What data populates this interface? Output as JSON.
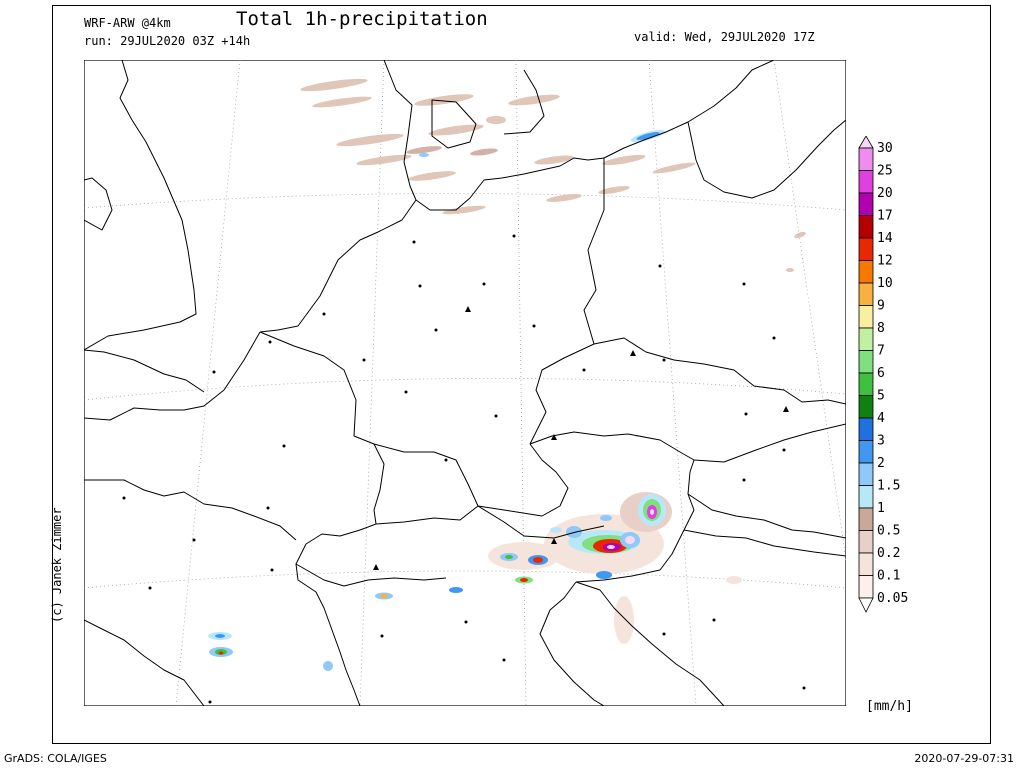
{
  "header": {
    "model": "WRF-ARW @4km",
    "run": "run: 29JUL2020 03Z +14h",
    "title": "Total 1h-precipitation",
    "valid": "valid: Wed, 29JUL2020 17Z"
  },
  "credit": "(c) Janek Zimmer",
  "footer": {
    "left": "GrADS: COLA/IGES",
    "right": "2020-07-29-07:31"
  },
  "colorbar": {
    "unit": "[mm/h]",
    "levels": [
      "30",
      "25",
      "20",
      "17",
      "14",
      "12",
      "10",
      "9",
      "8",
      "7",
      "6",
      "5",
      "4",
      "3",
      "2",
      "1.5",
      "1",
      "0.5",
      "0.2",
      "0.1",
      "0.05"
    ],
    "colors": [
      "#f6d8f6",
      "#f08cf0",
      "#e040e0",
      "#b000b0",
      "#b40000",
      "#e82800",
      "#f87800",
      "#f8b040",
      "#f8f0a0",
      "#c0f0a0",
      "#80e080",
      "#40c040",
      "#108010",
      "#2070e0",
      "#4098f0",
      "#90c8f8",
      "#b8e8f8",
      "#c8a898",
      "#e8d0c8",
      "#f4e4dc",
      "#fbf0ea"
    ]
  },
  "map": {
    "region": "Central Europe",
    "colors": {
      "coast": "#000000",
      "grid": "#a0a0a0"
    }
  }
}
